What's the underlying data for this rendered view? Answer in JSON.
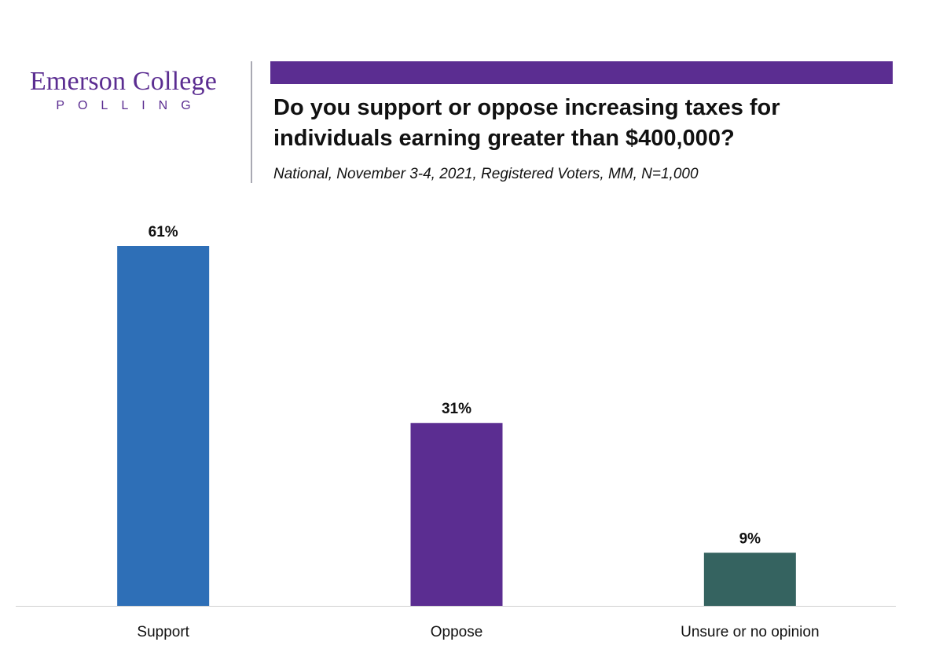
{
  "logo": {
    "name": "Emerson College",
    "sub": "POLLING"
  },
  "colors": {
    "brand": "#5b2d91",
    "support": "#2e6fb7",
    "oppose": "#5b2d91",
    "unsure": "#356360"
  },
  "chart_data": {
    "type": "bar",
    "title": "Do you support or oppose increasing taxes for individuals earning greater than $400,000?",
    "subtitle": "National, November 3-4, 2021, Registered Voters, MM, N=1,000",
    "categories": [
      "Support",
      "Oppose",
      "Unsure or no opinion"
    ],
    "values": [
      61,
      31,
      9
    ],
    "value_labels": [
      "61%",
      "31%",
      "9%"
    ],
    "bar_colors": [
      "#2e6fb7",
      "#5b2d91",
      "#356360"
    ],
    "xlabel": "",
    "ylabel": "",
    "ylim": [
      0,
      61
    ],
    "grid": false,
    "legend": "none"
  }
}
